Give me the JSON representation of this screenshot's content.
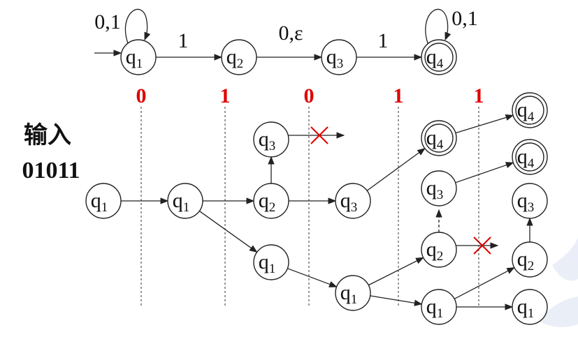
{
  "nfa": {
    "states": [
      {
        "id": "q1",
        "base": "q",
        "sub": "1",
        "start": true,
        "accept": false
      },
      {
        "id": "q2",
        "base": "q",
        "sub": "2",
        "start": false,
        "accept": false
      },
      {
        "id": "q3",
        "base": "q",
        "sub": "3",
        "start": false,
        "accept": false
      },
      {
        "id": "q4",
        "base": "q",
        "sub": "4",
        "start": false,
        "accept": true
      }
    ],
    "transitions": [
      {
        "from": "q1",
        "to": "q1",
        "label": "0,1"
      },
      {
        "from": "q1",
        "to": "q2",
        "label": "1"
      },
      {
        "from": "q2",
        "to": "q3",
        "label": "0,ε"
      },
      {
        "from": "q3",
        "to": "q4",
        "label": "1"
      },
      {
        "from": "q4",
        "to": "q4",
        "label": "0,1"
      }
    ]
  },
  "side_label": {
    "line1": "输入",
    "line2": "01011"
  },
  "input_symbols": [
    "0",
    "1",
    "0",
    "1",
    "1"
  ],
  "colors": {
    "input": "#e00000",
    "cross": "#e00000",
    "line": "#222222"
  }
}
